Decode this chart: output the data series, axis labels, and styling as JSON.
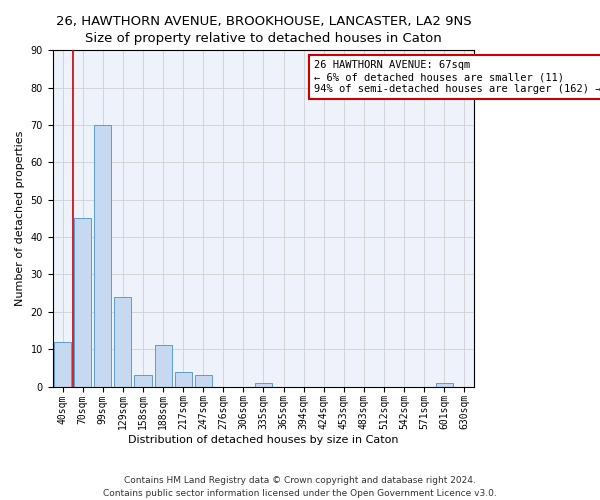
{
  "title": "26, HAWTHORN AVENUE, BROOKHOUSE, LANCASTER, LA2 9NS",
  "subtitle": "Size of property relative to detached houses in Caton",
  "xlabel": "Distribution of detached houses by size in Caton",
  "ylabel": "Number of detached properties",
  "footer_line1": "Contains HM Land Registry data © Crown copyright and database right 2024.",
  "footer_line2": "Contains public sector information licensed under the Open Government Licence v3.0.",
  "bar_labels": [
    "40sqm",
    "70sqm",
    "99sqm",
    "129sqm",
    "158sqm",
    "188sqm",
    "217sqm",
    "247sqm",
    "276sqm",
    "306sqm",
    "335sqm",
    "365sqm",
    "394sqm",
    "424sqm",
    "453sqm",
    "483sqm",
    "512sqm",
    "542sqm",
    "571sqm",
    "601sqm",
    "630sqm"
  ],
  "bar_values": [
    12,
    45,
    70,
    24,
    3,
    11,
    4,
    3,
    0,
    0,
    1,
    0,
    0,
    0,
    0,
    0,
    0,
    0,
    0,
    1,
    0
  ],
  "bar_color": "#c6d9f0",
  "bar_edge_color": "#5b9bd5",
  "grid_color": "#d0d0d0",
  "background_color": "#eef3fb",
  "annotation_box_color": "#ffffff",
  "annotation_box_edge": "#cc0000",
  "redline_color": "#cc0000",
  "annotation_text_line1": "26 HAWTHORN AVENUE: 67sqm",
  "annotation_text_line2": "← 6% of detached houses are smaller (11)",
  "annotation_text_line3": "94% of semi-detached houses are larger (162) →",
  "ylim": [
    0,
    90
  ],
  "yticks": [
    0,
    10,
    20,
    30,
    40,
    50,
    60,
    70,
    80,
    90
  ],
  "title_fontsize": 9.5,
  "axis_label_fontsize": 8,
  "tick_fontsize": 7,
  "annotation_fontsize": 7.5,
  "footer_fontsize": 6.5,
  "redline_x": 0.5
}
